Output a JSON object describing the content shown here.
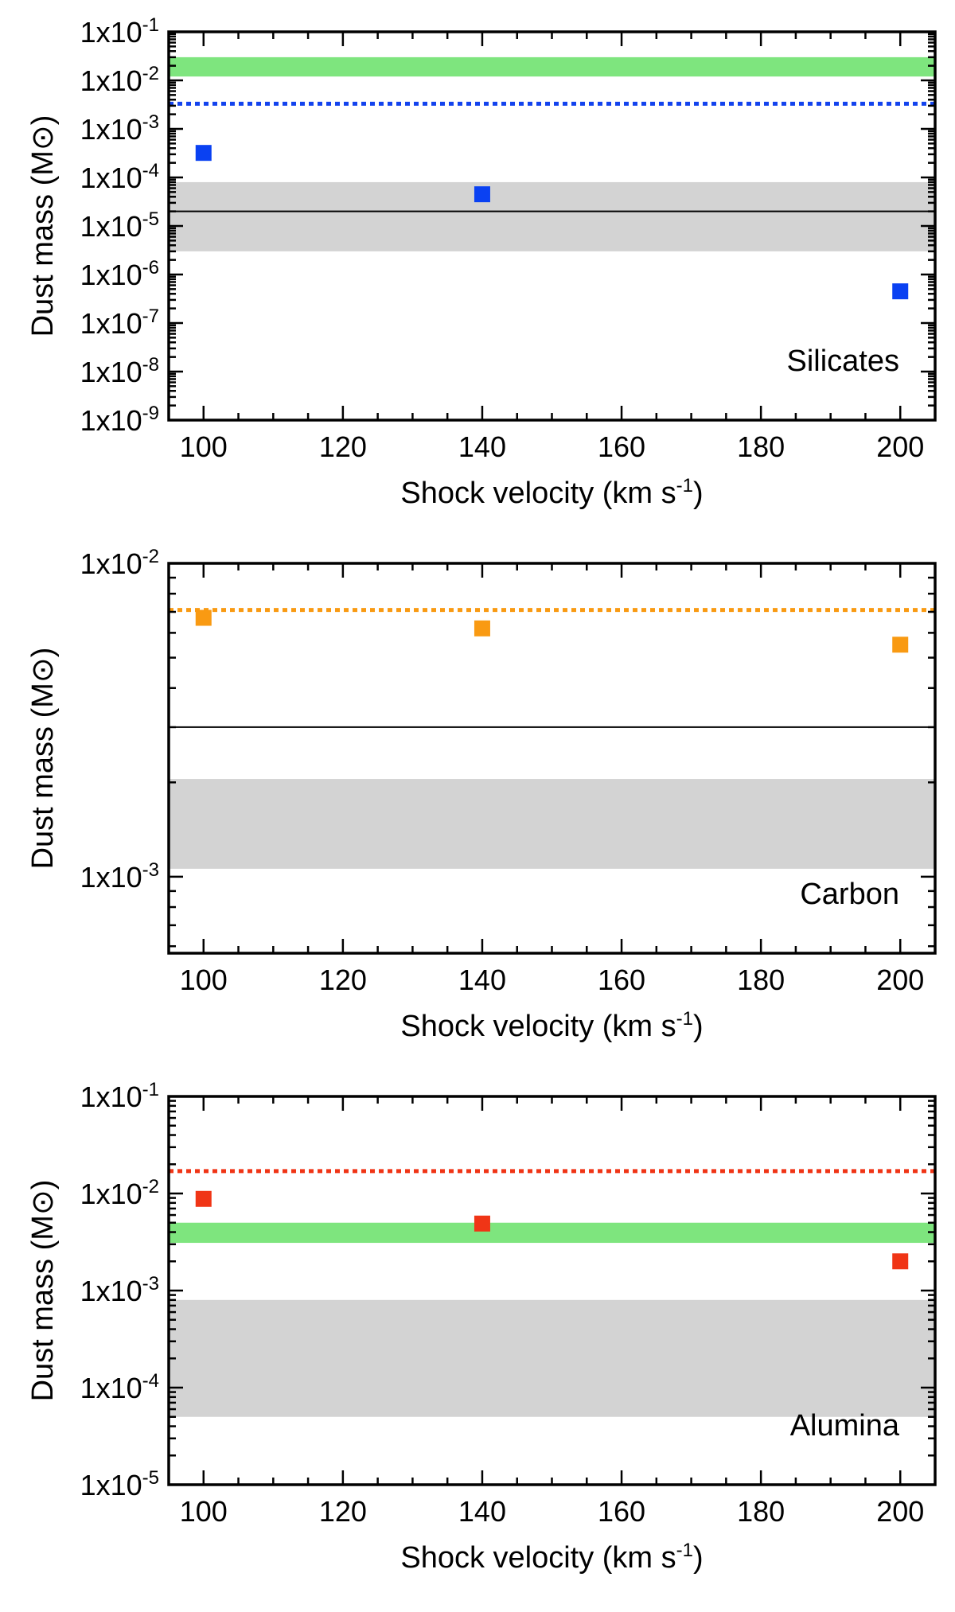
{
  "chart_data": [
    {
      "id": "silicates",
      "type": "scatter",
      "yscale": "log",
      "annotation": "Silicates",
      "xlabel": "Shock velocity (km s-1)",
      "ylabel": "Dust mass (M⊙)",
      "xlim": [
        95,
        205
      ],
      "ylim": [
        1e-09,
        0.1
      ],
      "xticks": [
        100,
        120,
        140,
        160,
        180,
        200
      ],
      "yticks": [
        1e-09,
        1e-08,
        1e-07,
        1e-06,
        1e-05,
        0.0001,
        0.001,
        0.01,
        0.1
      ],
      "marker_color": "#0a41f2",
      "points": [
        {
          "x": 100,
          "y": 0.00032
        },
        {
          "x": 140,
          "y": 4.5e-05
        },
        {
          "x": 200,
          "y": 4.5e-07
        }
      ],
      "bands": [
        {
          "name": "green-band",
          "y0": 0.012,
          "y1": 0.03,
          "color": "#7ee57e"
        },
        {
          "name": "grey-band",
          "y0": 3e-06,
          "y1": 8e-05,
          "color": "#d3d3d3"
        }
      ],
      "hlines": [
        {
          "name": "dotted-line",
          "y": 0.0033,
          "color": "#1343ee",
          "style": "dotted"
        },
        {
          "name": "solid-line",
          "y": 2e-05,
          "color": "#000000",
          "style": "solid"
        }
      ]
    },
    {
      "id": "carbon",
      "type": "scatter",
      "yscale": "log",
      "annotation": "Carbon",
      "xlabel": "Shock velocity (km s-1)",
      "ylabel": "Dust mass (M⊙)",
      "xlim": [
        95,
        205
      ],
      "ylim": [
        0.00057,
        0.01
      ],
      "xticks": [
        100,
        120,
        140,
        160,
        180,
        200
      ],
      "yticks": [
        0.001,
        0.01
      ],
      "marker_color": "#f99a12",
      "points": [
        {
          "x": 100,
          "y": 0.0067
        },
        {
          "x": 140,
          "y": 0.0062
        },
        {
          "x": 200,
          "y": 0.0055
        }
      ],
      "bands": [
        {
          "name": "grey-band",
          "y0": 0.00106,
          "y1": 0.00205,
          "color": "#d3d3d3"
        }
      ],
      "hlines": [
        {
          "name": "dotted-line",
          "y": 0.0071,
          "color": "#f99a12",
          "style": "dotted"
        },
        {
          "name": "solid-line",
          "y": 0.003,
          "color": "#000000",
          "style": "solid"
        }
      ]
    },
    {
      "id": "alumina",
      "type": "scatter",
      "yscale": "log",
      "annotation": "Alumina",
      "xlabel": "Shock velocity (km s-1)",
      "ylabel": "Dust mass (M⊙)",
      "xlim": [
        95,
        205
      ],
      "ylim": [
        1e-05,
        0.1
      ],
      "xticks": [
        100,
        120,
        140,
        160,
        180,
        200
      ],
      "yticks": [
        1e-05,
        0.0001,
        0.001,
        0.01,
        0.1
      ],
      "marker_color": "#f03516",
      "points": [
        {
          "x": 100,
          "y": 0.0088
        },
        {
          "x": 140,
          "y": 0.0049
        },
        {
          "x": 200,
          "y": 0.002
        }
      ],
      "bands": [
        {
          "name": "grey-band",
          "y0": 5e-05,
          "y1": 0.0008,
          "color": "#d3d3d3"
        },
        {
          "name": "green-band",
          "y0": 0.0031,
          "y1": 0.005,
          "color": "#7ee57e"
        }
      ],
      "hlines": [
        {
          "name": "dotted-line",
          "y": 0.017,
          "color": "#f03516",
          "style": "dotted"
        }
      ]
    }
  ]
}
